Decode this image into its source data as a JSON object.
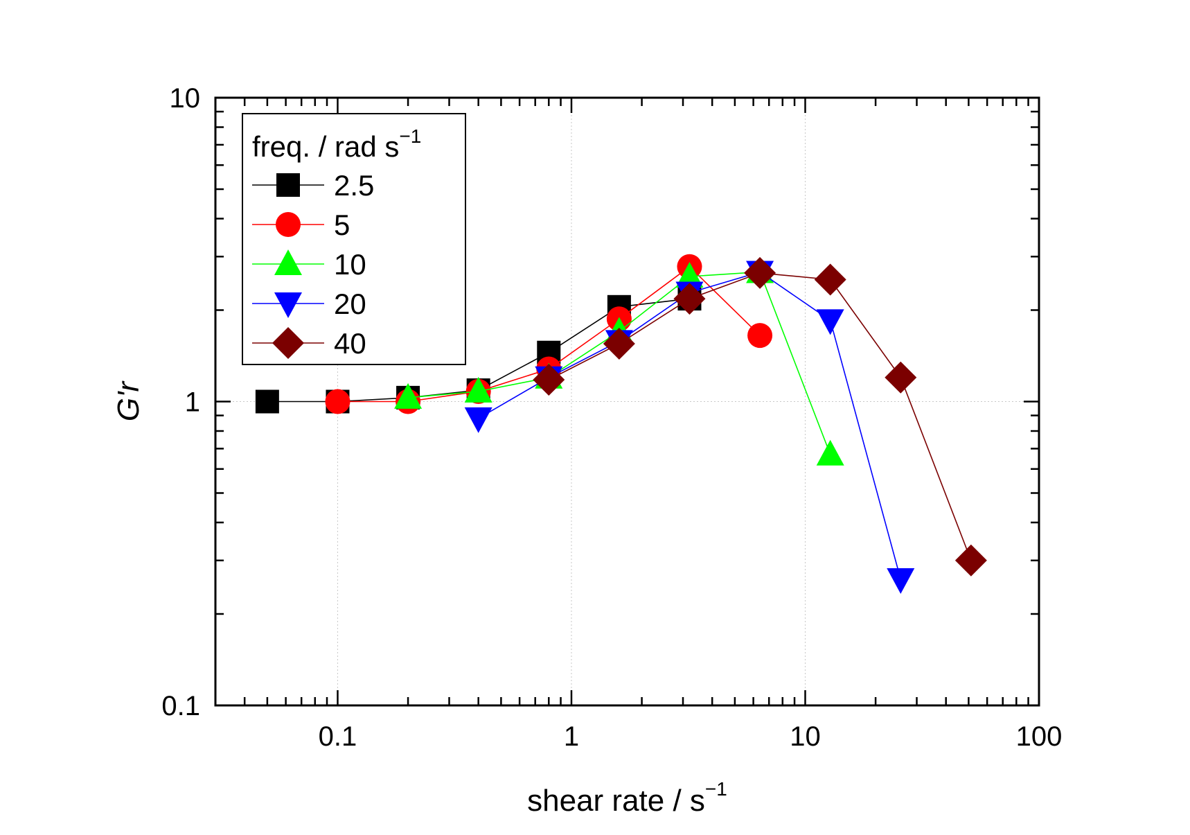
{
  "chart_data": {
    "type": "scatter",
    "title": "",
    "xlabel": "shear rate / s",
    "xlabel_superscript": "−1",
    "ylabel": "G'r",
    "xscale": "log",
    "yscale": "log",
    "xlim": [
      0.03,
      100
    ],
    "ylim": [
      0.1,
      10
    ],
    "x_ticks": [
      0.1,
      1,
      10,
      100
    ],
    "x_tick_labels": [
      "0.1",
      "1",
      "10",
      "100"
    ],
    "y_ticks": [
      0.1,
      1,
      10
    ],
    "y_tick_labels": [
      "0.1",
      "1",
      "10"
    ],
    "grid": true,
    "legend_title": "freq. / rad s",
    "legend_title_superscript": "−1",
    "legend_position": "top-left",
    "series": [
      {
        "name": "2.5",
        "color": "#000000",
        "marker": "square",
        "x": [
          0.05,
          0.1,
          0.2,
          0.4,
          0.8,
          1.6,
          3.2
        ],
        "y": [
          1.0,
          1.0,
          1.03,
          1.09,
          1.45,
          2.05,
          2.18
        ]
      },
      {
        "name": "5",
        "color": "#ff0000",
        "marker": "circle",
        "x": [
          0.1,
          0.2,
          0.4,
          0.8,
          1.6,
          3.2,
          6.4
        ],
        "y": [
          1.0,
          1.0,
          1.08,
          1.28,
          1.87,
          2.78,
          1.65
        ]
      },
      {
        "name": "10",
        "color": "#00ff00",
        "marker": "triangle-up",
        "x": [
          0.2,
          0.4,
          0.8,
          1.6,
          3.2,
          6.4,
          12.8
        ],
        "y": [
          1.03,
          1.08,
          1.2,
          1.7,
          2.58,
          2.67,
          0.67
        ]
      },
      {
        "name": "20",
        "color": "#0000ff",
        "marker": "triangle-down",
        "x": [
          0.4,
          0.8,
          1.6,
          3.2,
          6.4,
          12.8,
          25.6
        ],
        "y": [
          0.88,
          1.2,
          1.58,
          2.28,
          2.67,
          1.85,
          0.26
        ]
      },
      {
        "name": "40",
        "color": "#7b0000",
        "marker": "diamond",
        "x": [
          0.8,
          1.6,
          3.2,
          6.4,
          12.8,
          25.6,
          51.2
        ],
        "y": [
          1.18,
          1.55,
          2.18,
          2.65,
          2.52,
          1.2,
          0.3
        ]
      }
    ]
  }
}
